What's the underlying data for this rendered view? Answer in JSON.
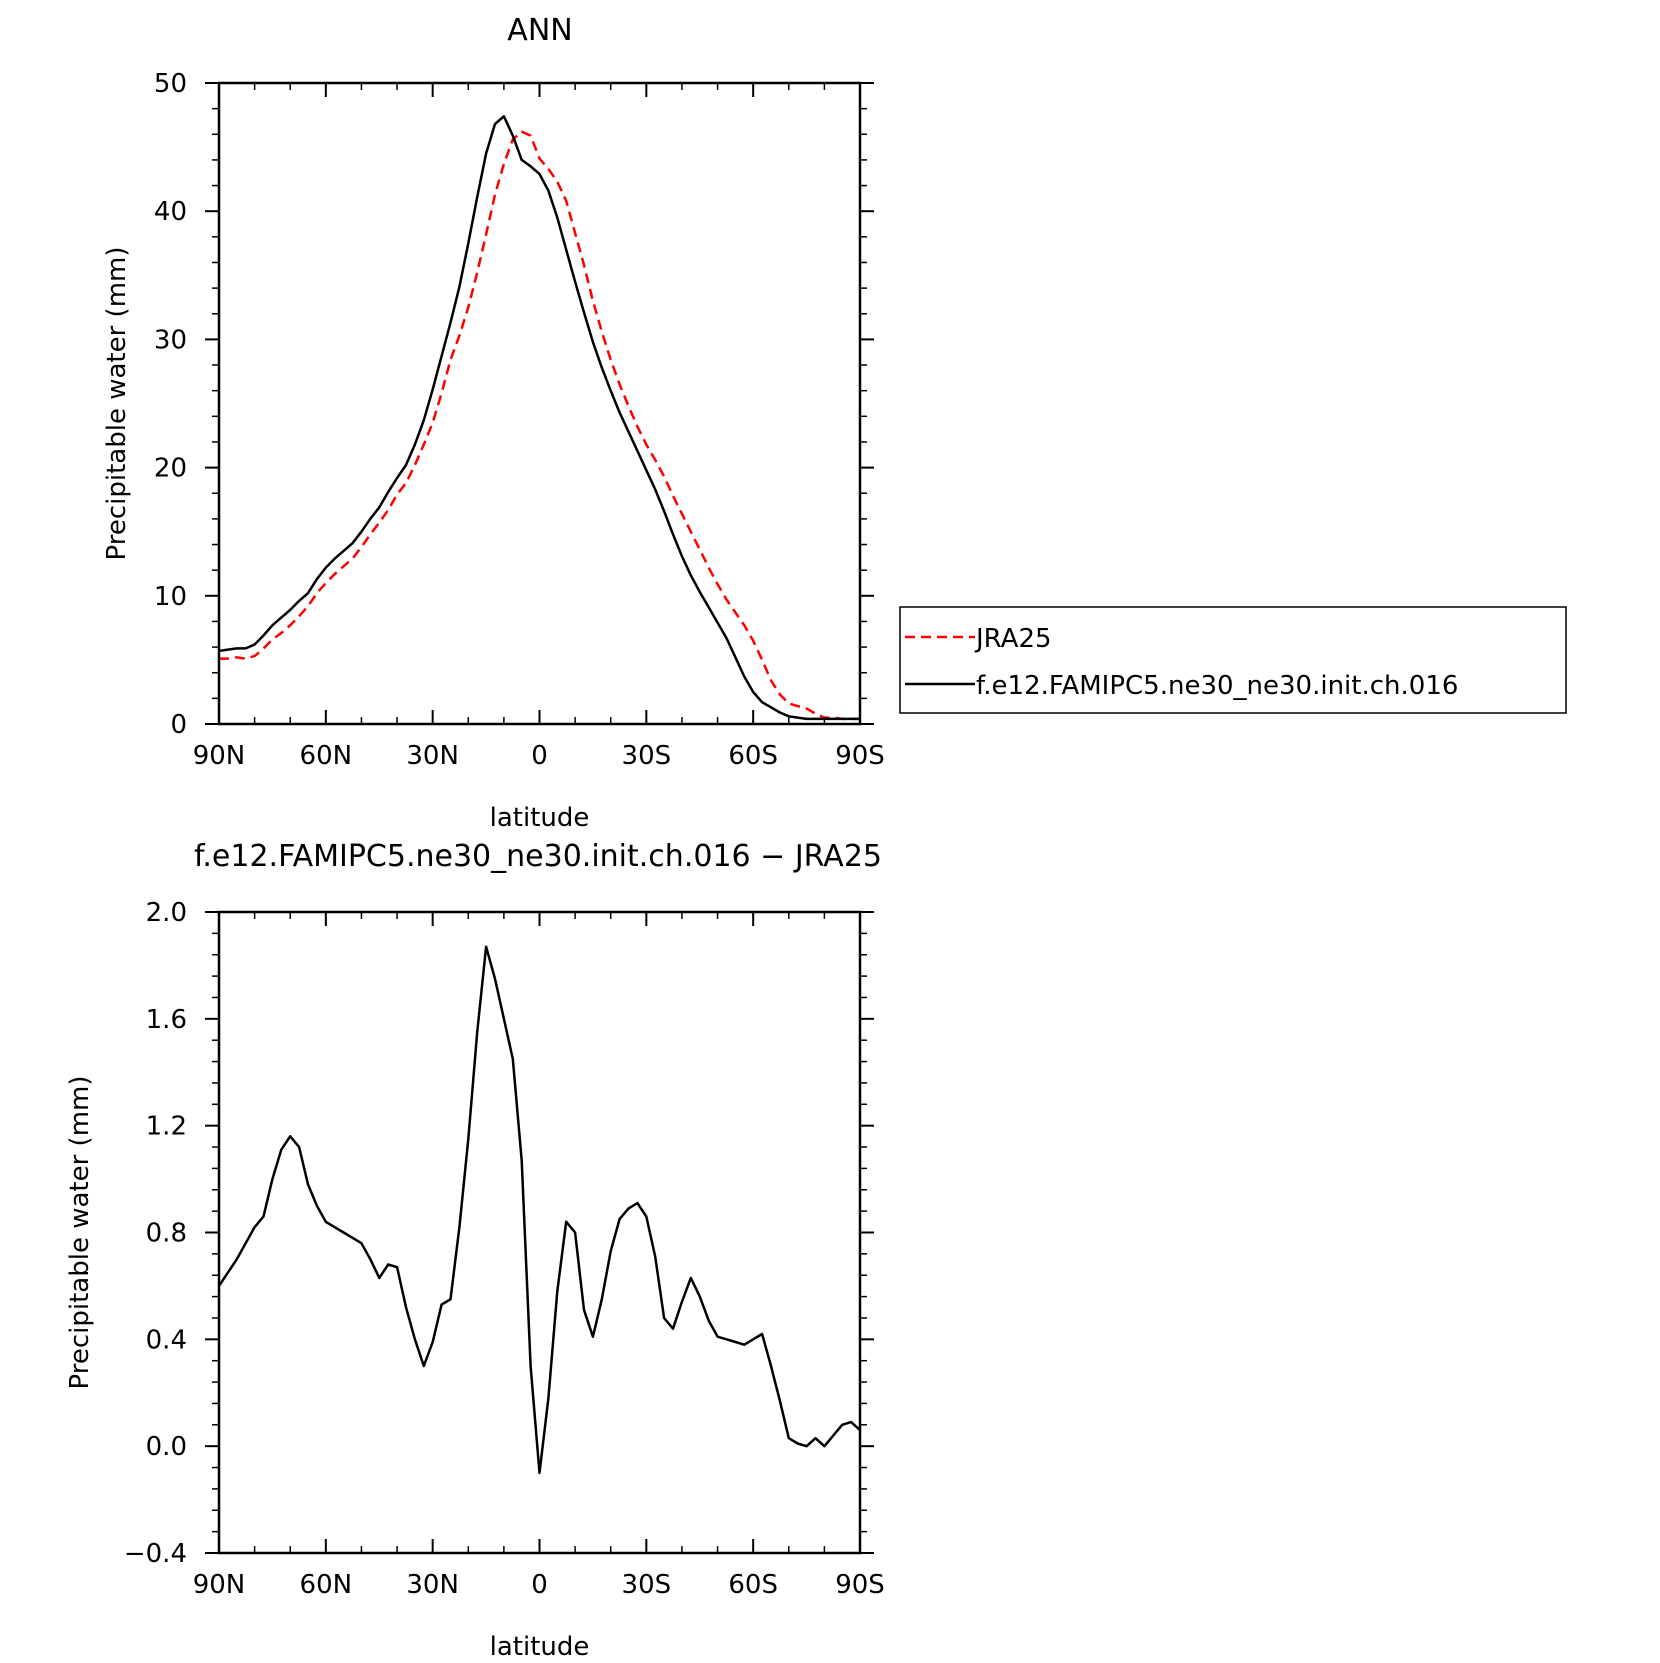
{
  "chart_data": [
    {
      "type": "line",
      "title": "ANN",
      "xlabel": "latitude",
      "ylabel": "Precipitable water (mm)",
      "xlim": [
        90,
        -90
      ],
      "ylim": [
        0,
        50
      ],
      "x_ticks": [
        90,
        60,
        30,
        0,
        -30,
        -60,
        -90
      ],
      "x_tick_labels": [
        "90N",
        "60N",
        "30N",
        "0",
        "30S",
        "60S",
        "90S"
      ],
      "y_ticks": [
        0,
        10,
        20,
        30,
        40,
        50
      ],
      "y_tick_labels": [
        "0",
        "10",
        "20",
        "30",
        "40",
        "50"
      ],
      "grid": false,
      "legend_position": "right",
      "series": [
        {
          "name": "JRA25",
          "color": "#ff0000",
          "dash": "dashed",
          "x": [
            90,
            87.5,
            85,
            82.5,
            80,
            77.5,
            75,
            72.5,
            70,
            67.5,
            65,
            62.5,
            60,
            57.5,
            55,
            52.5,
            50,
            47.5,
            45,
            42.5,
            40,
            37.5,
            35,
            32.5,
            30,
            27.5,
            25,
            22.5,
            20,
            17.5,
            15,
            12.5,
            10,
            7.5,
            5,
            2.5,
            0,
            -2.5,
            -5,
            -7.5,
            -10,
            -12.5,
            -15,
            -17.5,
            -20,
            -22.5,
            -25,
            -27.5,
            -30,
            -32.5,
            -35,
            -37.5,
            -40,
            -42.5,
            -45,
            -47.5,
            -50,
            -52.5,
            -55,
            -57.5,
            -60,
            -62.5,
            -65,
            -67.5,
            -70,
            -72.5,
            -75,
            -77.5,
            -80,
            -82.5,
            -85,
            -87.5,
            -90
          ],
          "y": [
            5.1,
            5.1,
            5.2,
            5.1,
            5.3,
            5.9,
            6.6,
            7.1,
            7.7,
            8.4,
            9.2,
            10.2,
            11.0,
            11.7,
            12.3,
            12.9,
            13.8,
            14.8,
            15.7,
            16.7,
            17.9,
            18.8,
            20.2,
            21.8,
            23.5,
            25.8,
            28.4,
            30.3,
            32.5,
            35.2,
            38.2,
            41.3,
            43.7,
            45.6,
            46.2,
            45.9,
            44.1,
            43.3,
            42.3,
            40.8,
            38.3,
            35.8,
            33.0,
            30.6,
            28.4,
            26.5,
            24.8,
            23.2,
            21.8,
            20.6,
            19.3,
            17.8,
            16.4,
            15.0,
            13.6,
            12.2,
            10.9,
            9.7,
            8.7,
            7.7,
            6.5,
            5.0,
            3.4,
            2.3,
            1.6,
            1.4,
            1.2,
            0.8,
            0.5,
            0.5,
            0.4,
            0.4,
            0.4
          ]
        },
        {
          "name": "f.e12.FAMIPC5.ne30_ne30.init.ch.016",
          "color": "#000000",
          "dash": "solid",
          "x": [
            90,
            87.5,
            85,
            82.5,
            80,
            77.5,
            75,
            72.5,
            70,
            67.5,
            65,
            62.5,
            60,
            57.5,
            55,
            52.5,
            50,
            47.5,
            45,
            42.5,
            40,
            37.5,
            35,
            32.5,
            30,
            27.5,
            25,
            22.5,
            20,
            17.5,
            15,
            12.5,
            10,
            7.5,
            5,
            2.5,
            0,
            -2.5,
            -5,
            -7.5,
            -10,
            -12.5,
            -15,
            -17.5,
            -20,
            -22.5,
            -25,
            -27.5,
            -30,
            -32.5,
            -35,
            -37.5,
            -40,
            -42.5,
            -45,
            -47.5,
            -50,
            -52.5,
            -55,
            -57.5,
            -60,
            -62.5,
            -65,
            -67.5,
            -70,
            -72.5,
            -75,
            -77.5,
            -80,
            -82.5,
            -85,
            -87.5,
            -90
          ],
          "y": [
            5.7,
            5.8,
            5.9,
            5.9,
            6.2,
            6.9,
            7.7,
            8.3,
            8.9,
            9.6,
            10.2,
            11.3,
            12.2,
            12.9,
            13.5,
            14.1,
            15.0,
            16.0,
            16.9,
            18.1,
            19.2,
            20.2,
            21.8,
            23.7,
            26.1,
            28.7,
            31.3,
            34.1,
            37.5,
            41.1,
            44.5,
            46.8,
            47.4,
            45.9,
            44.0,
            43.5,
            42.9,
            41.6,
            39.5,
            37.0,
            34.5,
            32.1,
            29.8,
            27.8,
            26.0,
            24.3,
            22.8,
            21.3,
            19.8,
            18.3,
            16.6,
            14.8,
            13.1,
            11.6,
            10.3,
            9.1,
            7.9,
            6.7,
            5.2,
            3.7,
            2.5,
            1.7,
            1.3,
            0.9,
            0.6,
            0.5,
            0.4,
            0.4,
            0.4,
            0.4,
            0.4,
            0.4,
            0.4
          ]
        }
      ]
    },
    {
      "type": "line",
      "title": "f.e12.FAMIPC5.ne30_ne30.init.ch.016 − JRA25",
      "xlabel": "latitude",
      "ylabel": "Precipitable water (mm)",
      "xlim": [
        90,
        -90
      ],
      "ylim": [
        -0.4,
        2.0
      ],
      "x_ticks": [
        90,
        60,
        30,
        0,
        -30,
        -60,
        -90
      ],
      "x_tick_labels": [
        "90N",
        "60N",
        "30N",
        "0",
        "30S",
        "60S",
        "90S"
      ],
      "y_ticks": [
        -0.4,
        0.0,
        0.4,
        0.8,
        1.2,
        1.6,
        2.0
      ],
      "y_tick_labels": [
        "−0.4",
        "0.0",
        "0.4",
        "0.8",
        "1.2",
        "1.6",
        "2.0"
      ],
      "grid": false,
      "series": [
        {
          "color": "#000000",
          "dash": "solid",
          "x": [
            90,
            87.5,
            85,
            82.5,
            80,
            77.5,
            75,
            72.5,
            70,
            67.5,
            65,
            62.5,
            60,
            57.5,
            55,
            52.5,
            50,
            47.5,
            45,
            42.5,
            40,
            37.5,
            35,
            32.5,
            30,
            27.5,
            25,
            22.5,
            20,
            17.5,
            15,
            12.5,
            10,
            7.5,
            5,
            2.5,
            0,
            -2.5,
            -5,
            -7.5,
            -10,
            -12.5,
            -15,
            -17.5,
            -20,
            -22.5,
            -25,
            -27.5,
            -30,
            -32.5,
            -35,
            -37.5,
            -40,
            -42.5,
            -45,
            -47.5,
            -50,
            -52.5,
            -55,
            -57.5,
            -60,
            -62.5,
            -65,
            -67.5,
            -70,
            -72.5,
            -75,
            -77.5,
            -80,
            -82.5,
            -85,
            -87.5,
            -90
          ],
          "y": [
            0.6,
            0.65,
            0.7,
            0.76,
            0.82,
            0.86,
            1.0,
            1.11,
            1.16,
            1.12,
            0.98,
            0.9,
            0.84,
            0.82,
            0.8,
            0.78,
            0.76,
            0.7,
            0.63,
            0.68,
            0.67,
            0.52,
            0.4,
            0.3,
            0.39,
            0.53,
            0.55,
            0.82,
            1.15,
            1.55,
            1.87,
            1.75,
            1.6,
            1.45,
            1.07,
            0.3,
            -0.1,
            0.18,
            0.58,
            0.84,
            0.8,
            0.51,
            0.41,
            0.55,
            0.73,
            0.85,
            0.89,
            0.91,
            0.86,
            0.71,
            0.48,
            0.44,
            0.54,
            0.63,
            0.56,
            0.47,
            0.41,
            0.4,
            0.39,
            0.38,
            0.4,
            0.42,
            0.3,
            0.17,
            0.03,
            0.01,
            0.0,
            0.03,
            0.0,
            0.04,
            0.08,
            0.09,
            0.06
          ]
        }
      ]
    }
  ]
}
